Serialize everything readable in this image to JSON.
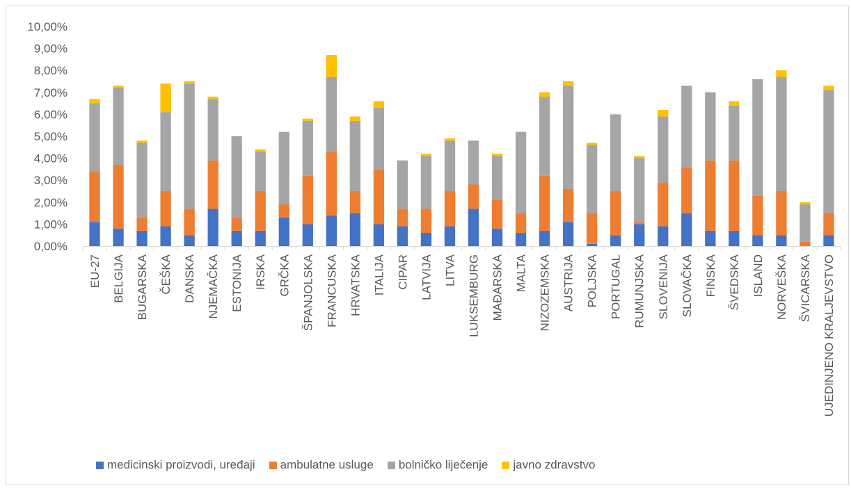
{
  "chart_data": {
    "type": "bar",
    "stacked": true,
    "categories": [
      "EU-27",
      "BELGIJA",
      "BUGARSKA",
      "ČEŠKA",
      "DANSKA",
      "NJEMAČKA",
      "ESTONIJA",
      "IRSKA",
      "GRČKA",
      "ŠPANJOLSKA",
      "FRANCUSKA",
      "HRVATSKA",
      "ITALIJA",
      "CIPAR",
      "LATVIJA",
      "LITVA",
      "LUKSEMBURG",
      "MAĐARSKA",
      "MALTA",
      "NIZOZEMSKA",
      "AUSTRIJA",
      "POLJSKA",
      "PORTUGAL",
      "RUMUNJSKA",
      "SLOVENIJA",
      "SLOVAČKA",
      "FINSKA",
      "ŠVEDSKA",
      "ISLAND",
      "NORVEŠKA",
      "ŠVICARSKA",
      "UJEDINJENO KRALJEVSTVO"
    ],
    "series": [
      {
        "name": "medicinski proizvodi, uređaji",
        "color": "#4472c4",
        "values": [
          1.1,
          0.8,
          0.7,
          0.9,
          0.5,
          1.7,
          0.7,
          0.7,
          1.3,
          1.0,
          1.4,
          1.5,
          1.0,
          0.9,
          0.6,
          0.9,
          1.7,
          0.8,
          0.6,
          0.7,
          1.1,
          0.1,
          0.5,
          1.0,
          0.9,
          1.5,
          0.7,
          0.7,
          0.5,
          0.5,
          0.0,
          0.5
        ]
      },
      {
        "name": "ambulatne usluge",
        "color": "#ed7d31",
        "values": [
          2.3,
          2.9,
          0.6,
          1.6,
          1.2,
          2.2,
          0.6,
          1.8,
          0.6,
          2.2,
          2.9,
          1.0,
          2.5,
          0.8,
          1.1,
          1.6,
          1.1,
          1.3,
          0.9,
          2.5,
          1.5,
          1.4,
          2.0,
          0.1,
          2.0,
          2.1,
          3.2,
          3.2,
          1.8,
          2.0,
          0.2,
          1.0
        ]
      },
      {
        "name": "bolničko liječenje",
        "color": "#a5a5a5",
        "values": [
          3.1,
          3.5,
          3.4,
          3.6,
          5.7,
          2.8,
          3.7,
          1.8,
          3.3,
          2.5,
          3.4,
          3.2,
          2.8,
          2.2,
          2.4,
          2.3,
          2.0,
          2.0,
          3.7,
          3.6,
          4.7,
          3.1,
          3.5,
          2.9,
          3.0,
          3.7,
          3.1,
          2.5,
          5.3,
          5.2,
          1.7,
          5.6
        ]
      },
      {
        "name": "javno zdravstvo",
        "color": "#ffc000",
        "values": [
          0.2,
          0.1,
          0.1,
          1.3,
          0.1,
          0.1,
          0.0,
          0.1,
          0.0,
          0.1,
          1.0,
          0.2,
          0.3,
          0.0,
          0.1,
          0.1,
          0.0,
          0.1,
          0.0,
          0.2,
          0.2,
          0.1,
          0.0,
          0.1,
          0.3,
          0.0,
          0.0,
          0.2,
          0.0,
          0.3,
          0.1,
          0.2
        ]
      }
    ],
    "y_ticks": [
      "0,00%",
      "1,00%",
      "2,00%",
      "3,00%",
      "4,00%",
      "5,00%",
      "6,00%",
      "7,00%",
      "8,00%",
      "9,00%",
      "10,00%"
    ],
    "ylim": [
      0,
      10
    ],
    "yunit": "%",
    "grid": false,
    "legend_position": "bottom",
    "title": "",
    "xlabel": "",
    "ylabel": ""
  }
}
